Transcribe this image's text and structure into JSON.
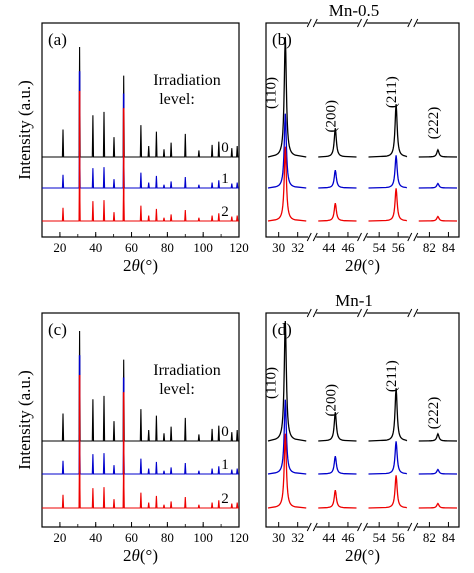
{
  "figure": {
    "series_colors": [
      "#000000",
      "#0000cc",
      "#ee0000"
    ]
  },
  "chart_data": [
    {
      "type": "line",
      "panel": "(a)",
      "title": "Mn-0.5",
      "xlabel": "2θ(°)",
      "ylabel": "Intensity (a.u.)",
      "legend_title": "Irradiation level:",
      "xlim": [
        10,
        120
      ],
      "xticks": [
        20,
        40,
        60,
        80,
        100,
        120
      ],
      "yticks": "none",
      "grid": false,
      "series": [
        {
          "name": "0",
          "color": "#000000",
          "offset": 2
        },
        {
          "name": "1",
          "color": "#0000cc",
          "offset": 1
        },
        {
          "name": "2",
          "color": "#ee0000",
          "offset": 0
        }
      ],
      "peaks": [
        {
          "x": 21.7,
          "h": 0.25,
          "bl": 0.12
        },
        {
          "x": 31.0,
          "h": 1.0,
          "bl": 0.45
        },
        {
          "x": 38.4,
          "h": 0.38,
          "bl": 0.18
        },
        {
          "x": 44.6,
          "h": 0.41,
          "bl": 0.19
        },
        {
          "x": 50.2,
          "h": 0.18,
          "bl": 0.08
        },
        {
          "x": 55.6,
          "h": 0.74,
          "bl": 0.33
        },
        {
          "x": 65.2,
          "h": 0.29,
          "bl": 0.14
        },
        {
          "x": 69.6,
          "h": 0.1,
          "bl": 0.05
        },
        {
          "x": 73.9,
          "h": 0.23,
          "bl": 0.11
        },
        {
          "x": 78.1,
          "h": 0.07,
          "bl": 0.03
        },
        {
          "x": 82.1,
          "h": 0.13,
          "bl": 0.06
        },
        {
          "x": 90.0,
          "h": 0.21,
          "bl": 0.1
        },
        {
          "x": 97.6,
          "h": 0.06,
          "bl": 0.03
        },
        {
          "x": 105.0,
          "h": 0.11,
          "bl": 0.05
        },
        {
          "x": 108.7,
          "h": 0.14,
          "bl": 0.07
        },
        {
          "x": 116.0,
          "h": 0.08,
          "bl": 0.04
        },
        {
          "x": 119.0,
          "h": 0.1,
          "bl": 0.05
        }
      ]
    },
    {
      "type": "line",
      "panel": "(b)",
      "xlabel": "2θ(°)",
      "xticks_by_segment": [
        [
          "30",
          "32"
        ],
        [
          "44",
          "46"
        ],
        [
          "54",
          "56"
        ],
        [
          "82",
          "84"
        ]
      ],
      "axis_breaks": true,
      "segments": [
        {
          "range": [
            29.5,
            33
          ],
          "hkl": "(110)",
          "peak": 31.1,
          "h": 1.0
        },
        {
          "range": [
            43,
            47
          ],
          "hkl": "(200)",
          "peak": 44.8,
          "h": 0.24
        },
        {
          "range": [
            53,
            57
          ],
          "hkl": "(211)",
          "peak": 55.8,
          "h": 0.44
        },
        {
          "range": [
            81.5,
            84.5
          ],
          "hkl": "(222)",
          "peak": 83.0,
          "h": 0.06
        }
      ],
      "series": [
        {
          "name": "0",
          "color": "#000000"
        },
        {
          "name": "1",
          "color": "#0000cc"
        },
        {
          "name": "2",
          "color": "#ee0000"
        }
      ]
    },
    {
      "type": "line",
      "panel": "(c)",
      "title": "Mn-1",
      "xlabel": "2θ(°)",
      "ylabel": "Intensity (a.u.)",
      "legend_title": "Irradiation level:",
      "xlim": [
        10,
        120
      ],
      "xticks": [
        20,
        40,
        60,
        80,
        100,
        120
      ],
      "yticks": "none",
      "grid": false,
      "series": [
        {
          "name": "0",
          "color": "#000000",
          "offset": 2
        },
        {
          "name": "1",
          "color": "#0000cc",
          "offset": 1
        },
        {
          "name": "2",
          "color": "#ee0000",
          "offset": 0
        }
      ],
      "peaks": [
        {
          "x": 21.7,
          "h": 0.25,
          "bl": 0.12
        },
        {
          "x": 31.0,
          "h": 1.0,
          "bl": 0.45
        },
        {
          "x": 38.4,
          "h": 0.38,
          "bl": 0.18
        },
        {
          "x": 44.6,
          "h": 0.41,
          "bl": 0.19
        },
        {
          "x": 50.2,
          "h": 0.18,
          "bl": 0.08
        },
        {
          "x": 55.6,
          "h": 0.74,
          "bl": 0.33
        },
        {
          "x": 65.2,
          "h": 0.29,
          "bl": 0.14
        },
        {
          "x": 69.6,
          "h": 0.1,
          "bl": 0.05
        },
        {
          "x": 73.9,
          "h": 0.23,
          "bl": 0.11
        },
        {
          "x": 78.1,
          "h": 0.07,
          "bl": 0.03
        },
        {
          "x": 82.1,
          "h": 0.13,
          "bl": 0.06
        },
        {
          "x": 90.0,
          "h": 0.21,
          "bl": 0.1
        },
        {
          "x": 97.6,
          "h": 0.06,
          "bl": 0.03
        },
        {
          "x": 105.0,
          "h": 0.11,
          "bl": 0.05
        },
        {
          "x": 108.7,
          "h": 0.14,
          "bl": 0.07
        },
        {
          "x": 116.0,
          "h": 0.08,
          "bl": 0.04
        },
        {
          "x": 119.0,
          "h": 0.1,
          "bl": 0.05
        }
      ]
    },
    {
      "type": "line",
      "panel": "(d)",
      "xlabel": "2θ(°)",
      "xticks_by_segment": [
        [
          "30",
          "32"
        ],
        [
          "44",
          "46"
        ],
        [
          "54",
          "56"
        ],
        [
          "82",
          "84"
        ]
      ],
      "axis_breaks": true,
      "segments": [
        {
          "range": [
            29.5,
            33
          ],
          "hkl": "(110)",
          "peak": 31.1,
          "h": 1.0
        },
        {
          "range": [
            43,
            47
          ],
          "hkl": "(200)",
          "peak": 44.8,
          "h": 0.24
        },
        {
          "range": [
            53,
            57
          ],
          "hkl": "(211)",
          "peak": 55.8,
          "h": 0.44
        },
        {
          "range": [
            81.5,
            84.5
          ],
          "hkl": "(222)",
          "peak": 83.0,
          "h": 0.06
        }
      ],
      "series": [
        {
          "name": "0",
          "color": "#000000"
        },
        {
          "name": "1",
          "color": "#0000cc"
        },
        {
          "name": "2",
          "color": "#ee0000"
        }
      ]
    }
  ]
}
